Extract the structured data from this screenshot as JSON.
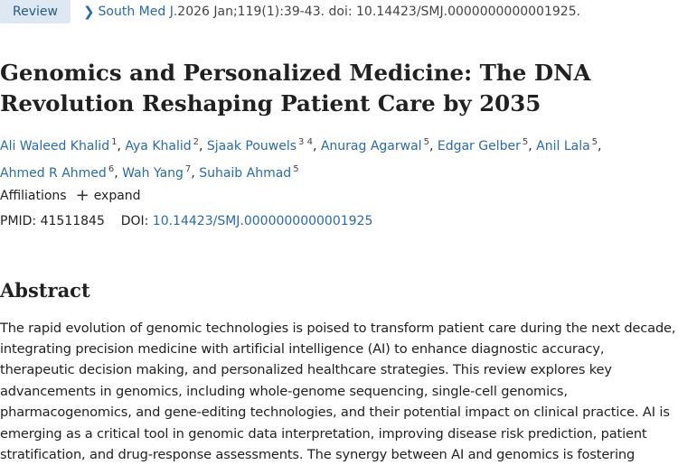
{
  "header": {
    "badge": "Review",
    "journal": "South Med J.",
    "citation": " 2026 Jan;119(1):39-43. doi: 10.14423/SMJ.0000000000001925."
  },
  "article": {
    "title": "Genomics and Personalized Medicine: The DNA Revolution Reshaping Patient Care by 2035"
  },
  "authors": [
    {
      "name": "Ali Waleed Khalid",
      "sup": "1"
    },
    {
      "name": "Aya Khalid",
      "sup": "2"
    },
    {
      "name": "Sjaak Pouwels",
      "sup": "3 4"
    },
    {
      "name": "Anurag Agarwal",
      "sup": "5"
    },
    {
      "name": "Edgar Gelber",
      "sup": "5"
    },
    {
      "name": "Anil Lala",
      "sup": "5"
    },
    {
      "name": "Ahmed R Ahmed",
      "sup": "6"
    },
    {
      "name": "Wah Yang",
      "sup": "7"
    },
    {
      "name": "Suhaib Ahmad",
      "sup": "5"
    }
  ],
  "affiliations": {
    "label": "Affiliations",
    "expand_label": "expand"
  },
  "ids": {
    "pmid_label": "PMID:",
    "pmid": "41511845",
    "doi_label": "DOI:",
    "doi": "10.14423/SMJ.0000000000001925"
  },
  "abstract": {
    "heading": "Abstract",
    "text": "The rapid evolution of genomic technologies is poised to transform patient care during the next decade, integrating precision medicine with artificial intelligence (AI) to enhance diagnostic accuracy, therapeutic decision making, and personalized healthcare strategies. This review explores key advancements in genomics, including whole-genome sequencing, single-cell genomics, pharmacogenomics, and gene-editing technologies, and their potential impact on clinical practice. AI is emerging as a critical tool in genomic data interpretation, improving disease risk prediction, patient stratification, and drug-response assessments. The synergy between AI and genomics is fostering"
  }
}
